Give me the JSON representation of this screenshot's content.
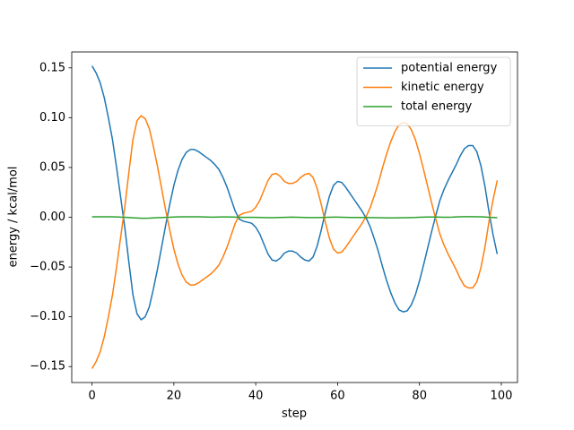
{
  "chart_data": {
    "type": "line",
    "xlabel": "step",
    "ylabel": "energy / kcal/mol",
    "x": [
      0,
      1,
      2,
      3,
      4,
      5,
      6,
      7,
      8,
      9,
      10,
      11,
      12,
      13,
      14,
      15,
      16,
      17,
      18,
      19,
      20,
      21,
      22,
      23,
      24,
      25,
      26,
      27,
      28,
      29,
      30,
      31,
      32,
      33,
      34,
      35,
      36,
      37,
      38,
      39,
      40,
      41,
      42,
      43,
      44,
      45,
      46,
      47,
      48,
      49,
      50,
      51,
      52,
      53,
      54,
      55,
      56,
      57,
      58,
      59,
      60,
      61,
      62,
      63,
      64,
      65,
      66,
      67,
      68,
      69,
      70,
      71,
      72,
      73,
      74,
      75,
      76,
      77,
      78,
      79,
      80,
      81,
      82,
      83,
      84,
      85,
      86,
      87,
      88,
      89,
      90,
      91,
      92,
      93,
      94,
      95,
      96,
      97,
      98,
      99
    ],
    "series": [
      {
        "name": "potential energy",
        "color": "#1f77b4",
        "values": [
          0.152,
          0.145,
          0.135,
          0.12,
          0.1,
          0.078,
          0.05,
          0.02,
          -0.01,
          -0.045,
          -0.078,
          -0.097,
          -0.103,
          -0.1,
          -0.09,
          -0.072,
          -0.052,
          -0.03,
          -0.008,
          0.013,
          0.032,
          0.047,
          0.058,
          0.065,
          0.068,
          0.068,
          0.066,
          0.063,
          0.06,
          0.057,
          0.053,
          0.048,
          0.04,
          0.03,
          0.018,
          0.006,
          -0.002,
          -0.004,
          -0.005,
          -0.006,
          -0.01,
          -0.017,
          -0.027,
          -0.037,
          -0.043,
          -0.044,
          -0.041,
          -0.036,
          -0.034,
          -0.034,
          -0.036,
          -0.04,
          -0.043,
          -0.044,
          -0.04,
          -0.029,
          -0.013,
          0.005,
          0.021,
          0.032,
          0.036,
          0.035,
          0.03,
          0.024,
          0.018,
          0.012,
          0.006,
          -0.001,
          -0.01,
          -0.022,
          -0.035,
          -0.05,
          -0.064,
          -0.076,
          -0.086,
          -0.093,
          -0.095,
          -0.094,
          -0.088,
          -0.078,
          -0.064,
          -0.048,
          -0.031,
          -0.014,
          0.002,
          0.017,
          0.028,
          0.037,
          0.045,
          0.053,
          0.062,
          0.069,
          0.072,
          0.072,
          0.066,
          0.052,
          0.031,
          0.005,
          -0.018,
          -0.037
        ]
      },
      {
        "name": "kinetic energy",
        "color": "#ff7f0e",
        "values": [
          -0.152,
          -0.145,
          -0.135,
          -0.12,
          -0.1,
          -0.078,
          -0.05,
          -0.02,
          0.01,
          0.045,
          0.078,
          0.097,
          0.102,
          0.099,
          0.089,
          0.071,
          0.051,
          0.029,
          0.007,
          -0.013,
          -0.032,
          -0.047,
          -0.058,
          -0.065,
          -0.068,
          -0.068,
          -0.066,
          -0.063,
          -0.06,
          -0.057,
          -0.053,
          -0.048,
          -0.04,
          -0.03,
          -0.018,
          -0.006,
          0.002,
          0.004,
          0.005,
          0.006,
          0.01,
          0.017,
          0.027,
          0.037,
          0.043,
          0.044,
          0.041,
          0.036,
          0.034,
          0.034,
          0.036,
          0.04,
          0.043,
          0.044,
          0.04,
          0.029,
          0.013,
          -0.005,
          -0.021,
          -0.032,
          -0.036,
          -0.035,
          -0.03,
          -0.024,
          -0.018,
          -0.012,
          -0.006,
          0.001,
          0.01,
          0.022,
          0.035,
          0.05,
          0.064,
          0.076,
          0.086,
          0.093,
          0.095,
          0.094,
          0.088,
          0.078,
          0.064,
          0.048,
          0.031,
          0.014,
          -0.002,
          -0.017,
          -0.028,
          -0.037,
          -0.045,
          -0.053,
          -0.062,
          -0.069,
          -0.071,
          -0.071,
          -0.065,
          -0.051,
          -0.03,
          -0.004,
          0.018,
          0.037
        ]
      },
      {
        "name": "total energy",
        "color": "#2ca02c",
        "values": [
          0.0005,
          0.0005,
          0.0005,
          0.0005,
          0.0005,
          0.0004,
          0.0003,
          0.0001,
          0,
          -0.0003,
          -0.0006,
          -0.0008,
          -0.001,
          -0.001,
          -0.0009,
          -0.0007,
          -0.0005,
          -0.0003,
          -0.0001,
          0,
          0.0002,
          0.0003,
          0.0004,
          0.0005,
          0.0005,
          0.0005,
          0.0004,
          0.0003,
          0.0002,
          0.0001,
          0.0001,
          0.0002,
          0.0003,
          0.0003,
          0.0002,
          0.0001,
          0,
          -0.0001,
          -0.0001,
          -0.0001,
          -0.0001,
          -0.0002,
          -0.0003,
          -0.0004,
          -0.0004,
          -0.0003,
          -0.0002,
          -0.0001,
          0,
          0.0001,
          0,
          -0.0001,
          -0.0002,
          -0.0003,
          -0.0003,
          -0.0003,
          -0.0002,
          -0.0001,
          0,
          0.0001,
          0.0001,
          0,
          -0.0001,
          -0.0002,
          -0.0002,
          -0.0002,
          -0.0002,
          -0.0002,
          -0.0003,
          -0.0004,
          -0.0005,
          -0.0006,
          -0.0007,
          -0.0007,
          -0.0007,
          -0.0006,
          -0.0005,
          -0.0004,
          -0.0003,
          -0.0002,
          0,
          0.0001,
          0.0002,
          0.0002,
          0.0002,
          0.0001,
          0,
          0,
          0.0001,
          0.0003,
          0.0005,
          0.0006,
          0.0006,
          0.0006,
          0.0005,
          0.0004,
          0.0002,
          0,
          -0.0002,
          -0.0004
        ]
      }
    ],
    "xlim": [
      -4.95,
      103.95
    ],
    "ylim": [
      -0.166,
      0.166
    ],
    "xticks": [
      0,
      20,
      40,
      60,
      80,
      100
    ],
    "yticks": [
      {
        "value": -0.15,
        "label": "−0.15"
      },
      {
        "value": -0.1,
        "label": "−0.10"
      },
      {
        "value": -0.05,
        "label": "−0.05"
      },
      {
        "value": 0,
        "label": "0.00"
      },
      {
        "value": 0.05,
        "label": "0.05"
      },
      {
        "value": 0.1,
        "label": "0.10"
      },
      {
        "value": 0.15,
        "label": "0.15"
      }
    ],
    "legend": "upper right",
    "grid": false
  }
}
